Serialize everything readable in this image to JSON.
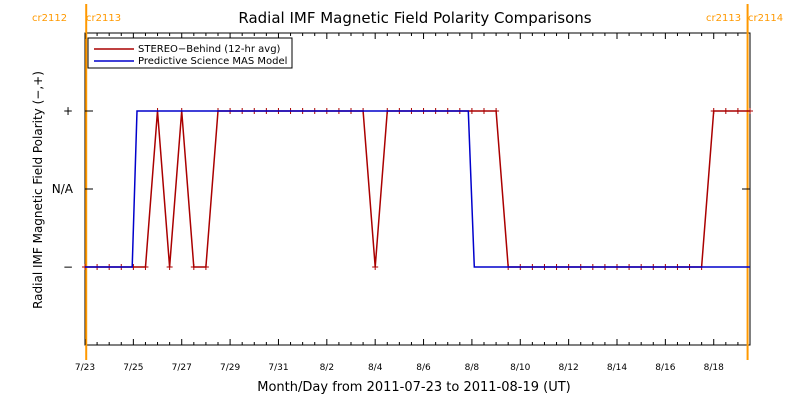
{
  "chart_data": {
    "type": "line",
    "title": "Radial IMF Magnetic Field Polarity Comparisons",
    "xlabel": "Month/Day from 2011-07-23 to 2011-08-19 (UT)",
    "ylabel": "Radial IMF Magnetic Field Polarity (−,+)",
    "x_unit": "days",
    "xlim": [
      0,
      27.5
    ],
    "y_categories": [
      "−",
      "N/A",
      "+"
    ],
    "ylim": [
      -1,
      3
    ],
    "x_ticks": [
      {
        "x": 0,
        "label": "7/23"
      },
      {
        "x": 2,
        "label": "7/25"
      },
      {
        "x": 4,
        "label": "7/27"
      },
      {
        "x": 6,
        "label": "7/29"
      },
      {
        "x": 8,
        "label": "7/31"
      },
      {
        "x": 10,
        "label": "8/2"
      },
      {
        "x": 12,
        "label": "8/4"
      },
      {
        "x": 14,
        "label": "8/6"
      },
      {
        "x": 16,
        "label": "8/8"
      },
      {
        "x": 18,
        "label": "8/10"
      },
      {
        "x": 20,
        "label": "8/12"
      },
      {
        "x": 22,
        "label": "8/14"
      },
      {
        "x": 24,
        "label": "8/16"
      },
      {
        "x": 26,
        "label": "8/18"
      }
    ],
    "carrington_markers": [
      {
        "x": 0.05,
        "label_left": "cr2112",
        "label_right": "cr2113"
      },
      {
        "x": 27.4,
        "label_left": "cr2113",
        "label_right": "cr2114"
      }
    ],
    "legend": "top-left",
    "series": [
      {
        "name": "STEREO−Behind (12-hr avg)",
        "color": "#aa0000",
        "markers": true,
        "x": [
          0,
          0.5,
          1,
          1.5,
          2,
          2.5,
          3,
          3.5,
          4,
          4.5,
          5,
          5.5,
          6,
          6.5,
          7,
          7.5,
          8,
          8.5,
          9,
          9.5,
          10,
          10.5,
          11,
          11.5,
          12,
          12.5,
          13,
          13.5,
          14,
          14.5,
          15,
          15.5,
          16,
          16.5,
          17,
          17.5,
          18,
          18.5,
          19,
          19.5,
          20,
          20.5,
          21,
          21.5,
          22,
          22.5,
          23,
          23.5,
          24,
          24.5,
          25,
          25.5,
          26,
          26.5,
          27,
          27.5
        ],
        "y": [
          0,
          0,
          0,
          0,
          0,
          0,
          2,
          0,
          2,
          0,
          0,
          2,
          2,
          2,
          2,
          2,
          2,
          2,
          2,
          2,
          2,
          2,
          2,
          2,
          0,
          2,
          2,
          2,
          2,
          2,
          2,
          2,
          2,
          2,
          2,
          0,
          0,
          0,
          0,
          0,
          0,
          0,
          0,
          0,
          0,
          0,
          0,
          0,
          0,
          0,
          0,
          0,
          2,
          2,
          2,
          2
        ]
      },
      {
        "name": "Predictive Science MAS Model",
        "color": "#0000cc",
        "markers": false,
        "x": [
          0,
          1.95,
          2.15,
          15.85,
          16.1,
          27.5
        ],
        "y": [
          0,
          0,
          2,
          2,
          0,
          0
        ]
      }
    ]
  },
  "colors": {
    "frame": "#000000",
    "carrington": "#ff9900"
  }
}
